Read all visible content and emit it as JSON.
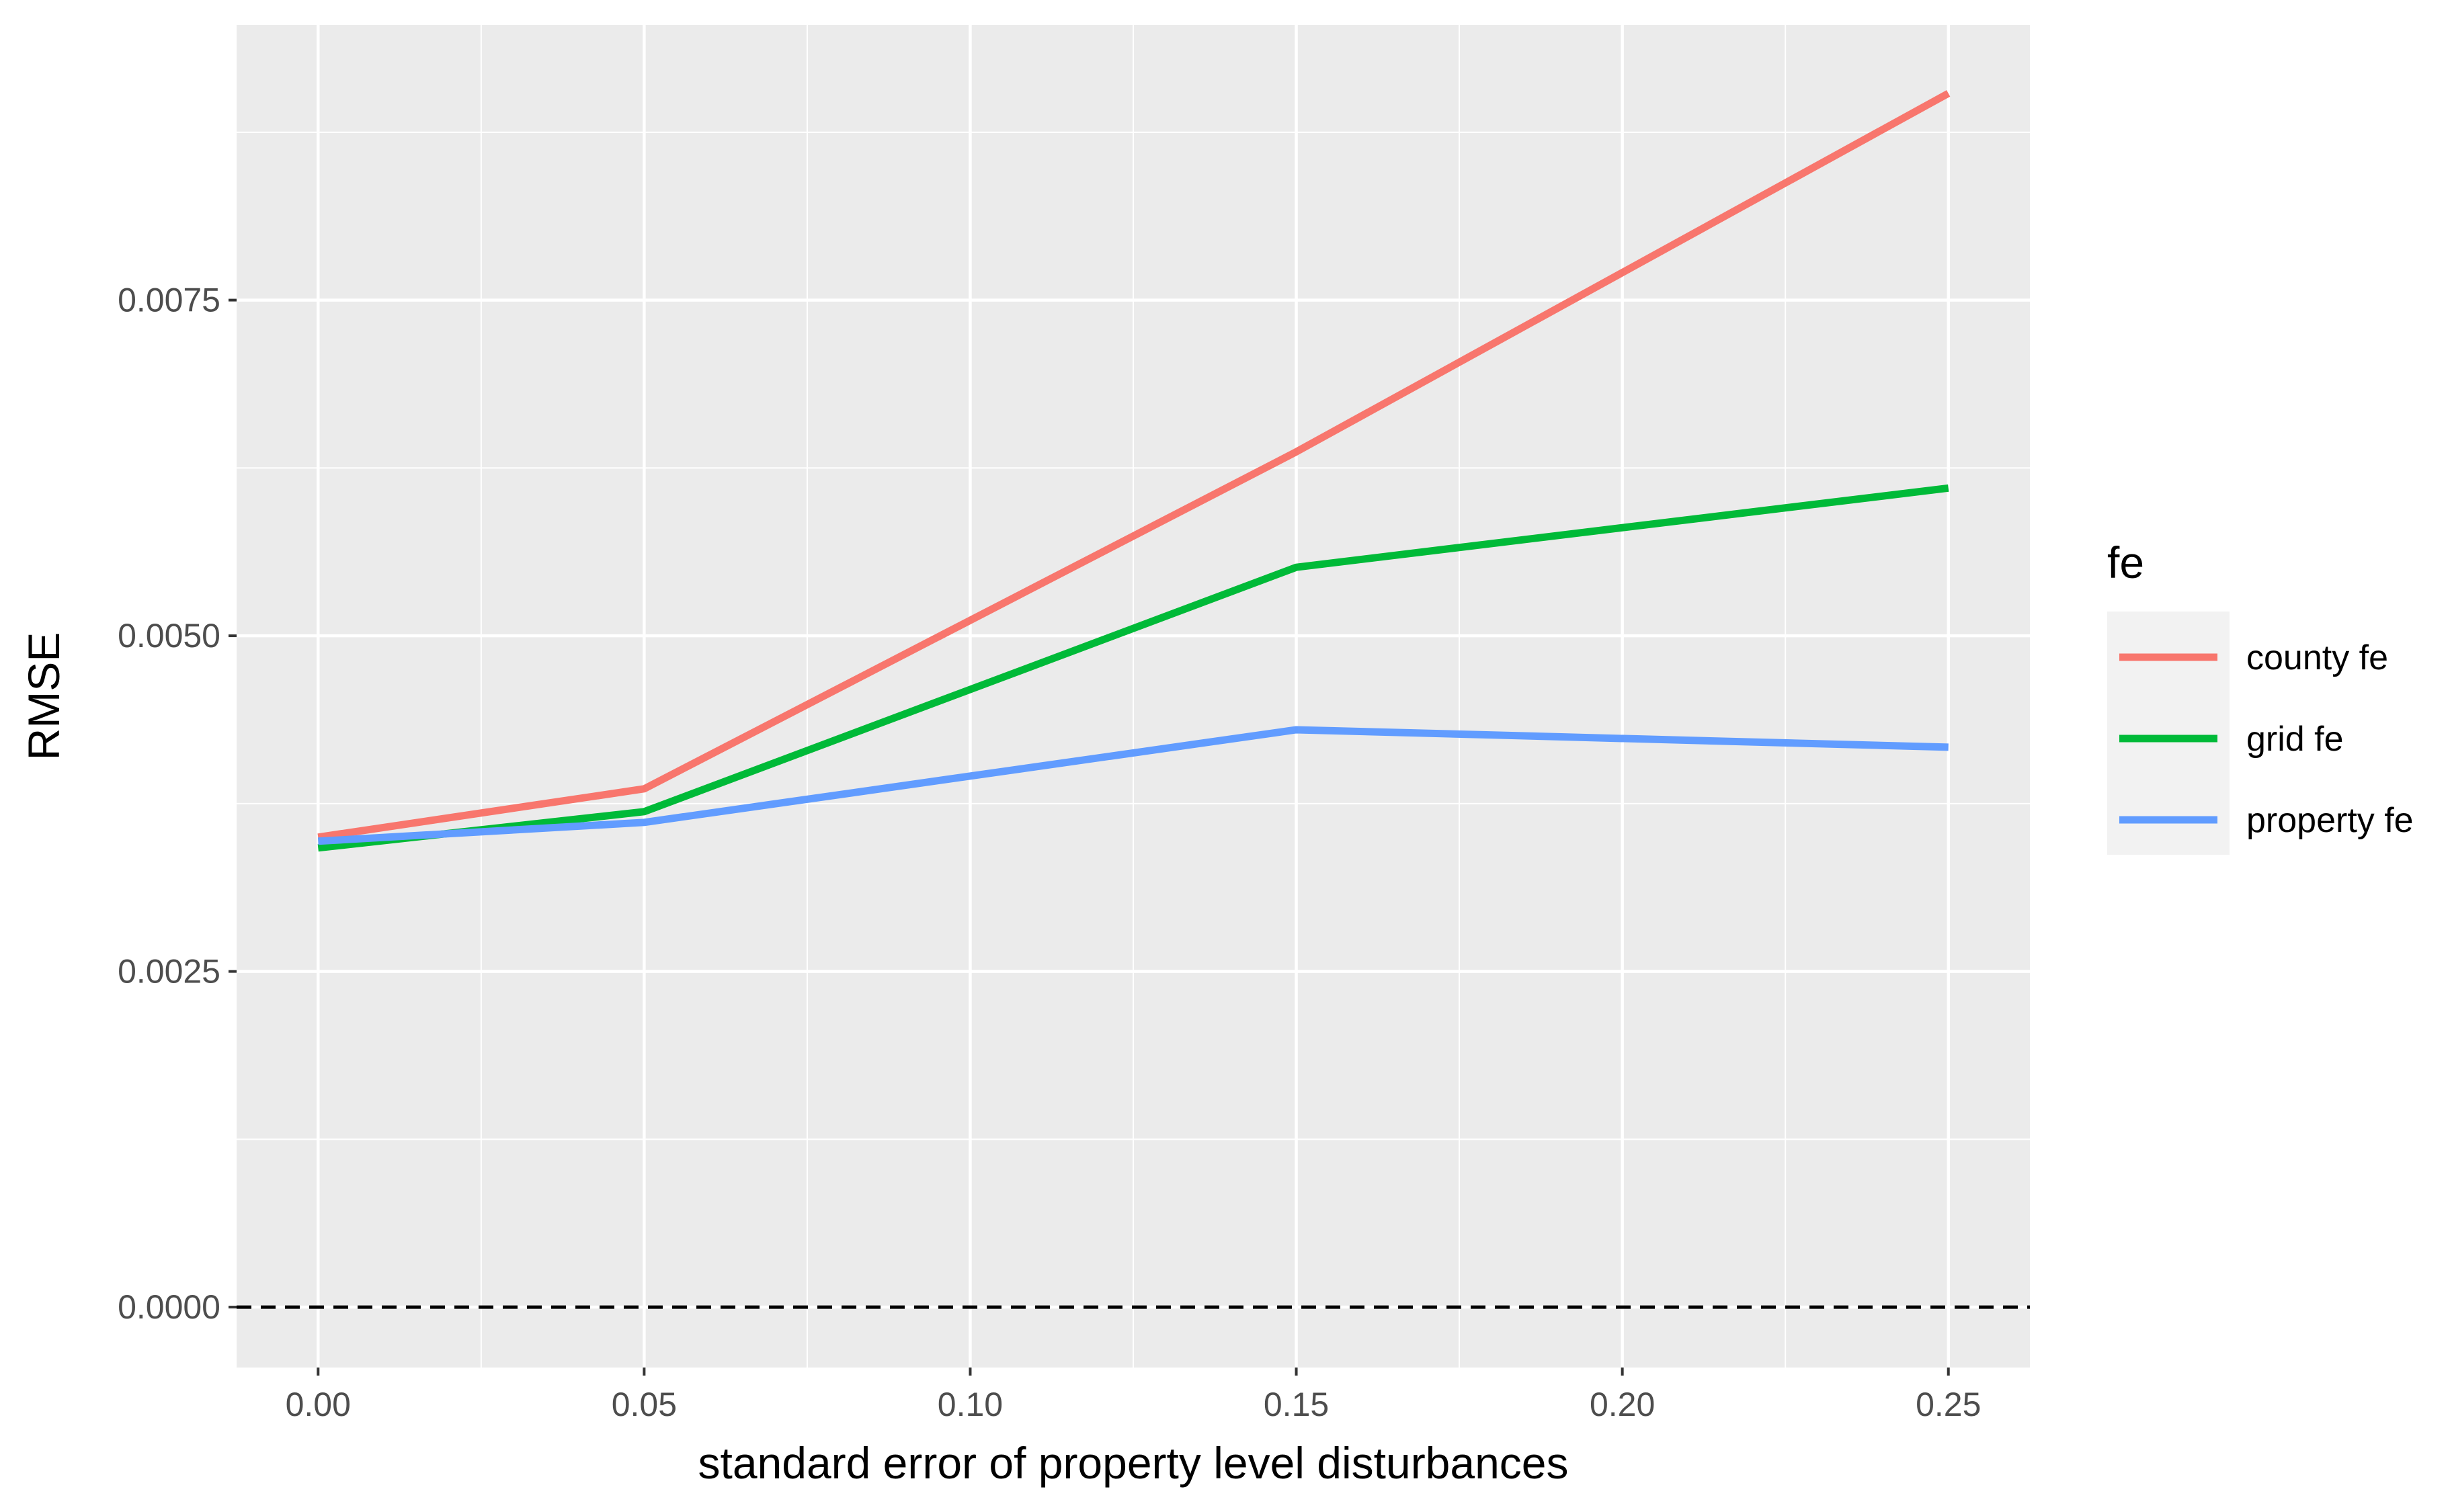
{
  "chart_data": {
    "type": "line",
    "x": [
      0.0,
      0.05,
      0.15,
      0.25
    ],
    "series": [
      {
        "name": "county fe",
        "color": "#F8766D",
        "values": [
          0.0035,
          0.00386,
          0.00637,
          0.00904
        ]
      },
      {
        "name": "grid fe",
        "color": "#00BA38",
        "values": [
          0.00342,
          0.00369,
          0.00551,
          0.0061
        ]
      },
      {
        "name": "property fe",
        "color": "#619CFF",
        "values": [
          0.00347,
          0.00361,
          0.0043,
          0.00417
        ]
      }
    ],
    "title": "",
    "xlabel": "standard error of property level disturbances",
    "ylabel": "RMSE",
    "xlim": [
      -0.0125,
      0.2625
    ],
    "ylim": [
      -0.00045,
      0.00955
    ],
    "xticks": [
      0.0,
      0.05,
      0.1,
      0.15,
      0.2,
      0.25
    ],
    "xtick_labels": [
      "0.00",
      "0.05",
      "0.10",
      "0.15",
      "0.20",
      "0.25"
    ],
    "yticks": [
      0.0,
      0.0025,
      0.005,
      0.0075
    ],
    "ytick_labels": [
      "0.0000",
      "0.0025",
      "0.0050",
      "0.0075"
    ],
    "hline": {
      "y": 0.0,
      "style": "dashed",
      "color": "#000000"
    },
    "grid": true,
    "panel_background": "#EBEBEB",
    "legend": {
      "title": "fe",
      "position": "right"
    }
  }
}
